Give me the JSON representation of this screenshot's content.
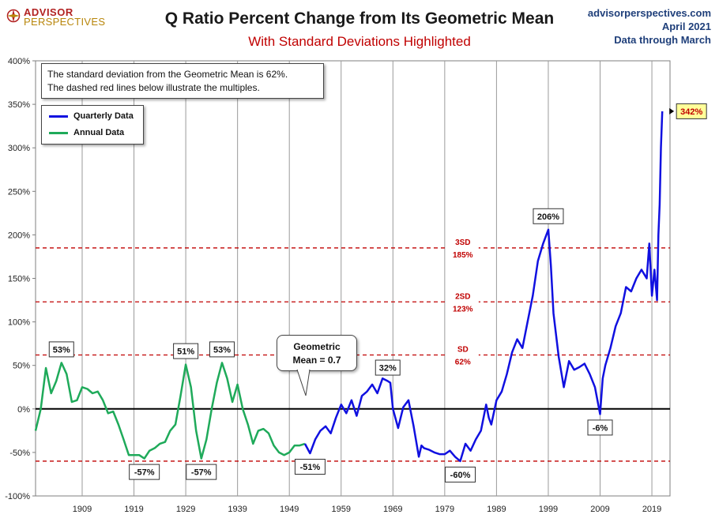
{
  "header": {
    "title": "Q Ratio Percent Change from Its Geometric Mean",
    "subtitle": "With Standard Deviations Highlighted",
    "logo_line1": "ADVISOR",
    "logo_line2": "PERSPECTIVES",
    "site": "advisorperspectives.com",
    "date": "April 2021",
    "data_through": "Data through March"
  },
  "note": {
    "line1": "The standard deviation from the Geometric Mean is 62%.",
    "line2": "The dashed red lines below illustrate the multiples."
  },
  "legend": {
    "quarterly": "Quarterly Data",
    "annual": "Annual Data"
  },
  "callout": {
    "line1": "Geometric",
    "line2": "Mean = 0.7"
  },
  "colors": {
    "quarterly": "#1010e0",
    "annual": "#1faa5a",
    "sd_line": "#c00000",
    "zero_line": "#000000",
    "grid": "#9a9a9a",
    "last_label_bg": "#ffff99"
  },
  "chart_data": {
    "type": "line",
    "title": "Q Ratio Percent Change from Its Geometric Mean",
    "subtitle": "With Standard Deviations Highlighted",
    "xlabel": "",
    "ylabel": "",
    "xlim": [
      1900,
      2022.5
    ],
    "ylim": [
      -100,
      400
    ],
    "y_ticks": [
      -100,
      -50,
      0,
      50,
      100,
      150,
      200,
      250,
      300,
      350,
      400
    ],
    "y_tick_labels": [
      "-100%",
      "-50%",
      "0%",
      "50%",
      "100%",
      "150%",
      "200%",
      "250%",
      "300%",
      "350%",
      "400%"
    ],
    "x_ticks": [
      1909,
      1919,
      1929,
      1939,
      1949,
      1959,
      1969,
      1979,
      1989,
      1999,
      2009,
      2019
    ],
    "x_tick_labels": [
      "1909",
      "1919",
      "1929",
      "1939",
      "1949",
      "1959",
      "1969",
      "1979",
      "1989",
      "1999",
      "2009",
      "2019"
    ],
    "reference_lines": [
      {
        "value": 185,
        "label_sd": "3SD",
        "label_pct": "185%"
      },
      {
        "value": 123,
        "label_sd": "2SD",
        "label_pct": "123%"
      },
      {
        "value": 62,
        "label_sd": "SD",
        "label_pct": "62%"
      },
      {
        "value": -60,
        "label_sd": "",
        "label_pct": ""
      }
    ],
    "series": [
      {
        "name": "Annual Data",
        "x": [
          1900,
          1901,
          1902,
          1903,
          1904,
          1905,
          1906,
          1907,
          1908,
          1909,
          1910,
          1911,
          1912,
          1913,
          1914,
          1915,
          1916,
          1917,
          1918,
          1919,
          1920,
          1921,
          1922,
          1923,
          1924,
          1925,
          1926,
          1927,
          1928,
          1929,
          1930,
          1931,
          1932,
          1933,
          1934,
          1935,
          1936,
          1937,
          1938,
          1939,
          1940,
          1941,
          1942,
          1943,
          1944,
          1945,
          1946,
          1947,
          1948,
          1949,
          1950,
          1951,
          1952
        ],
        "y": [
          -25,
          0,
          47,
          18,
          32,
          53,
          40,
          8,
          10,
          25,
          23,
          18,
          20,
          10,
          -5,
          -3,
          -18,
          -35,
          -53,
          -53,
          -53,
          -57,
          -48,
          -45,
          -40,
          -38,
          -25,
          -18,
          15,
          51,
          25,
          -25,
          -57,
          -35,
          0,
          30,
          53,
          35,
          8,
          28,
          0,
          -18,
          -40,
          -25,
          -23,
          -28,
          -42,
          -50,
          -53,
          -50,
          -42,
          -42,
          -40
        ]
      },
      {
        "name": "Quarterly Data",
        "x": [
          1952,
          1953,
          1954,
          1955,
          1956,
          1957,
          1958,
          1959,
          1960,
          1961,
          1962,
          1963,
          1964,
          1965,
          1966,
          1967,
          1968,
          1968.5,
          1969,
          1970,
          1970.5,
          1971,
          1972,
          1973,
          1974,
          1974.5,
          1975,
          1976,
          1977,
          1978,
          1979,
          1980,
          1981,
          1982,
          1983,
          1984,
          1985,
          1986,
          1987,
          1987.5,
          1988,
          1989,
          1990,
          1991,
          1992,
          1993,
          1994,
          1995,
          1996,
          1997,
          1998,
          1999,
          1999.5,
          2000,
          2001,
          2002,
          2003,
          2004,
          2005,
          2006,
          2007,
          2008,
          2009,
          2009.5,
          2010,
          2011,
          2012,
          2013,
          2014,
          2015,
          2016,
          2017,
          2018,
          2018.5,
          2019,
          2019.5,
          2020,
          2020.25,
          2020.5,
          2020.75,
          2021
        ],
        "y": [
          -40,
          -51,
          -35,
          -25,
          -20,
          -28,
          -10,
          5,
          -5,
          10,
          -8,
          15,
          20,
          28,
          18,
          35,
          32,
          30,
          0,
          -22,
          -10,
          2,
          10,
          -20,
          -55,
          -42,
          -45,
          -47,
          -50,
          -52,
          -52,
          -48,
          -55,
          -60,
          -40,
          -48,
          -35,
          -25,
          5,
          -10,
          -18,
          10,
          20,
          40,
          65,
          80,
          70,
          100,
          130,
          170,
          190,
          206,
          165,
          110,
          60,
          25,
          55,
          45,
          48,
          52,
          40,
          25,
          -6,
          35,
          50,
          70,
          95,
          110,
          140,
          135,
          150,
          160,
          150,
          190,
          130,
          160,
          125,
          200,
          235,
          300,
          342
        ]
      }
    ],
    "point_labels": [
      {
        "text": "53%",
        "x": 1905,
        "y": 53
      },
      {
        "text": "-57%",
        "x": 1921,
        "y": -57
      },
      {
        "text": "51%",
        "x": 1929,
        "y": 51
      },
      {
        "text": "-57%",
        "x": 1932,
        "y": -57
      },
      {
        "text": "53%",
        "x": 1936,
        "y": 53
      },
      {
        "text": "-51%",
        "x": 1953,
        "y": -51
      },
      {
        "text": "32%",
        "x": 1968,
        "y": 32
      },
      {
        "text": "-60%",
        "x": 1982,
        "y": -60
      },
      {
        "text": "206%",
        "x": 1999,
        "y": 206
      },
      {
        "text": "-6%",
        "x": 2009,
        "y": -6
      },
      {
        "text": "342%",
        "x": 2021,
        "y": 342
      }
    ]
  }
}
